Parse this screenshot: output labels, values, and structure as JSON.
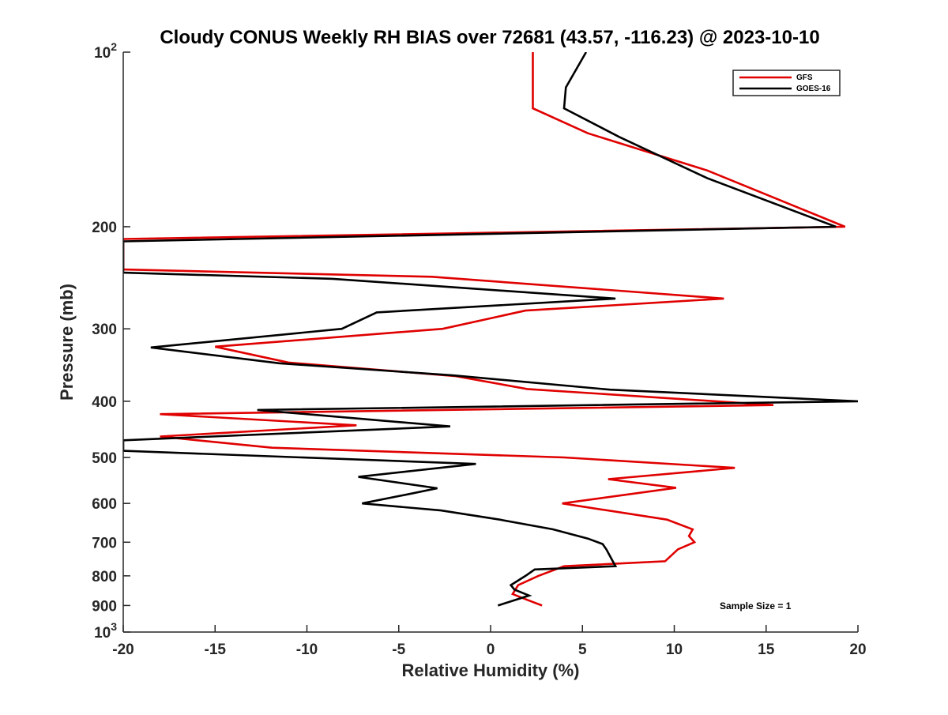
{
  "chart_data": {
    "type": "line",
    "title": "Cloudy CONUS Weekly RH BIAS over 72681 (43.57, -116.23) @ 2023-10-10",
    "xlabel": "Relative Humidity (%)",
    "ylabel": "Pressure (mb)",
    "xlim": [
      -20,
      20
    ],
    "ylim": [
      100,
      1000
    ],
    "y_scale": "log",
    "y_reversed": true,
    "x_ticks": [
      "-20",
      "-15",
      "-10",
      "-5",
      "0",
      "5",
      "10",
      "15",
      "20"
    ],
    "y_ticks": [
      {
        "value": 100,
        "base": "10",
        "exp": "2"
      },
      {
        "value": 200,
        "label": "200"
      },
      {
        "value": 300,
        "label": "300"
      },
      {
        "value": 400,
        "label": "400"
      },
      {
        "value": 500,
        "label": "500"
      },
      {
        "value": 600,
        "label": "600"
      },
      {
        "value": 700,
        "label": "700"
      },
      {
        "value": 800,
        "label": "800"
      },
      {
        "value": 900,
        "label": "900"
      },
      {
        "value": 1000,
        "base": "10",
        "exp": "3"
      }
    ],
    "grid": false,
    "legend_position": "top-right",
    "annotation": "Sample Size = 1",
    "series": [
      {
        "name": "GFS",
        "color": "#e00000",
        "points": [
          [
            2.3,
            100
          ],
          [
            2.3,
            125
          ],
          [
            5.3,
            138
          ],
          [
            11.8,
            160
          ],
          [
            19.3,
            200
          ],
          [
            -20,
            210
          ],
          [
            -20,
            237
          ],
          [
            -3.2,
            244
          ],
          [
            12.7,
            266
          ],
          [
            1.9,
            279
          ],
          [
            -2.6,
            300
          ],
          [
            -15.0,
            322
          ],
          [
            -11.0,
            343
          ],
          [
            -1.9,
            362
          ],
          [
            2.0,
            381
          ],
          [
            15.4,
            406
          ],
          [
            -18.0,
            421
          ],
          [
            -7.3,
            440
          ],
          [
            -18.0,
            460
          ],
          [
            -11.9,
            481
          ],
          [
            4.0,
            500
          ],
          [
            13.3,
            521
          ],
          [
            6.4,
            545
          ],
          [
            10.1,
            564
          ],
          [
            3.9,
            600
          ],
          [
            9.6,
            640
          ],
          [
            11.0,
            665
          ],
          [
            10.8,
            683
          ],
          [
            11.1,
            700
          ],
          [
            10.2,
            720
          ],
          [
            9.5,
            755
          ],
          [
            4.0,
            770
          ],
          [
            2.6,
            800
          ],
          [
            1.5,
            830
          ],
          [
            1.2,
            860
          ],
          [
            2.0,
            880
          ],
          [
            2.8,
            900
          ]
        ]
      },
      {
        "name": "GOES-16",
        "color": "#000000",
        "points": [
          [
            5.2,
            100
          ],
          [
            4.1,
            115
          ],
          [
            4.0,
            125
          ],
          [
            7.0,
            140
          ],
          [
            11.8,
            165
          ],
          [
            18.8,
            200
          ],
          [
            -20,
            212
          ],
          [
            -20,
            240
          ],
          [
            -8.6,
            246
          ],
          [
            6.8,
            266
          ],
          [
            -6.2,
            281
          ],
          [
            -8.1,
            300
          ],
          [
            -18.5,
            323
          ],
          [
            -11.5,
            344
          ],
          [
            -2.0,
            361
          ],
          [
            6.5,
            382
          ],
          [
            20.0,
            400
          ],
          [
            -12.7,
            414
          ],
          [
            -2.2,
            442
          ],
          [
            -20,
            467
          ],
          [
            -20,
            487
          ],
          [
            -0.8,
            513
          ],
          [
            -7.2,
            540
          ],
          [
            -2.9,
            565
          ],
          [
            -4.3,
            577
          ],
          [
            -7.0,
            600
          ],
          [
            -2.7,
            617
          ],
          [
            0.5,
            640
          ],
          [
            3.4,
            665
          ],
          [
            5.3,
            690
          ],
          [
            6.1,
            705
          ],
          [
            6.3,
            720
          ],
          [
            6.8,
            770
          ],
          [
            2.4,
            780
          ],
          [
            1.9,
            800
          ],
          [
            1.1,
            830
          ],
          [
            1.3,
            845
          ],
          [
            2.1,
            865
          ],
          [
            0.4,
            900
          ]
        ]
      }
    ]
  }
}
